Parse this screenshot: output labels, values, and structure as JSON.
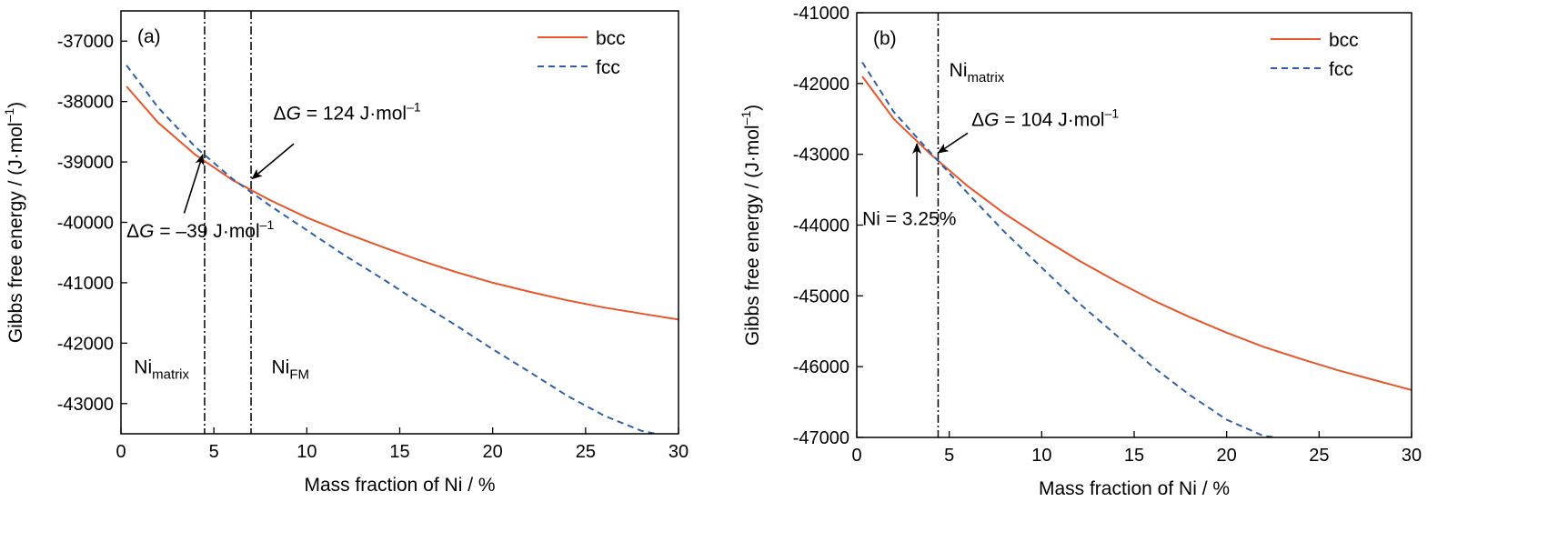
{
  "chart_data": [
    {
      "panel_label": "(a)",
      "type": "line",
      "xlabel": "Mass fraction of Ni / %",
      "ylabel_main": "Gibbs free energy / (J",
      "ylabel_dot": "·",
      "ylabel_unit": "mol",
      "ylabel_sup": "–1",
      "ylabel_close": ")",
      "xlim": [
        0,
        30
      ],
      "ylim": [
        -43500,
        -36500
      ],
      "xticks": [
        0,
        5,
        10,
        15,
        20,
        25,
        30
      ],
      "yticks": [
        -43000,
        -42000,
        -41000,
        -40000,
        -39000,
        -38000,
        -37000
      ],
      "legend_position": "top-right",
      "series": [
        {
          "name": "bcc",
          "color": "#e8552a",
          "style": "solid",
          "x": [
            0.3,
            2,
            4,
            6,
            8,
            10,
            12,
            14,
            16,
            18,
            20,
            22,
            24,
            26,
            28,
            30
          ],
          "y": [
            -37750,
            -38350,
            -38880,
            -39300,
            -39630,
            -39920,
            -40170,
            -40400,
            -40620,
            -40820,
            -41000,
            -41150,
            -41290,
            -41410,
            -41510,
            -41610
          ]
        },
        {
          "name": "fcc",
          "color": "#2f5fa6",
          "style": "dashed",
          "x": [
            0.3,
            2,
            4,
            6,
            8,
            10,
            12,
            14,
            16,
            18,
            20,
            22,
            24,
            26,
            28,
            28.8
          ],
          "y": [
            -37400,
            -38100,
            -38750,
            -39280,
            -39720,
            -40130,
            -40540,
            -40920,
            -41320,
            -41700,
            -42100,
            -42480,
            -42870,
            -43200,
            -43450,
            -43500
          ]
        }
      ],
      "vlines": [
        4.5,
        7.0
      ],
      "text_labels": [
        {
          "base": "Ni",
          "sub": "matrix",
          "x": 0.7,
          "y": -42500
        },
        {
          "base": "Ni",
          "sub": "FM",
          "x": 8.1,
          "y": -42500
        }
      ],
      "annotations": [
        {
          "prefix": "Δ",
          "var": "G",
          "text": " = –39 J",
          "dot": "·",
          "unit": "mol",
          "sup": "–1",
          "text_x": 0.3,
          "text_y": -40250,
          "arrow_from": [
            3.4,
            -39850
          ],
          "arrow_to": [
            4.4,
            -38880
          ]
        },
        {
          "prefix": "Δ",
          "var": "G",
          "text": " = 124 J",
          "dot": "·",
          "unit": "mol",
          "sup": "–1",
          "text_x": 8.2,
          "text_y": -38300,
          "arrow_from": [
            9.3,
            -38700
          ],
          "arrow_to": [
            7.05,
            -39280
          ]
        }
      ]
    },
    {
      "panel_label": "(b)",
      "type": "line",
      "xlabel": "Mass fraction of Ni / %",
      "ylabel_main": "Gibbs free energy / (J",
      "ylabel_dot": "·",
      "ylabel_unit": "mol",
      "ylabel_sup": "–1",
      "ylabel_close": ")",
      "xlim": [
        0,
        30
      ],
      "ylim": [
        -47000,
        -41000
      ],
      "xticks": [
        0,
        5,
        10,
        15,
        20,
        25,
        30
      ],
      "yticks": [
        -47000,
        -46000,
        -45000,
        -44000,
        -43000,
        -42000,
        -41000
      ],
      "legend_position": "top-right",
      "series": [
        {
          "name": "bcc",
          "color": "#e8552a",
          "style": "solid",
          "x": [
            0.3,
            2,
            4,
            6,
            8,
            10,
            12,
            14,
            16,
            18,
            20,
            22,
            24,
            26,
            28,
            30
          ],
          "y": [
            -41900,
            -42500,
            -43000,
            -43450,
            -43840,
            -44180,
            -44500,
            -44790,
            -45060,
            -45300,
            -45520,
            -45720,
            -45890,
            -46050,
            -46190,
            -46330
          ]
        },
        {
          "name": "fcc",
          "color": "#2f5fa6",
          "style": "dashed",
          "x": [
            0.3,
            2,
            4,
            6,
            8,
            10,
            12,
            14,
            16,
            18,
            20,
            22,
            22.7
          ],
          "y": [
            -41700,
            -42400,
            -42980,
            -43550,
            -44100,
            -44600,
            -45100,
            -45550,
            -46000,
            -46400,
            -46750,
            -46980,
            -47000
          ]
        }
      ],
      "vlines": [
        4.4
      ],
      "text_labels": [
        {
          "base": "Ni",
          "sub": "matrix",
          "x": 5.0,
          "y": -41900
        }
      ],
      "annotations": [
        {
          "prefix": "Δ",
          "var": "G",
          "text": " = 104 J",
          "dot": "·",
          "unit": "mol",
          "sup": "–1",
          "text_x": 6.2,
          "text_y": -42600,
          "arrow_from": [
            6.0,
            -42700
          ],
          "arrow_to": [
            4.4,
            -42980
          ]
        },
        {
          "prefix": "",
          "var": "",
          "text": "Ni = 3.25%",
          "dot": "",
          "unit": "",
          "sup": "",
          "text_x": 0.3,
          "text_y": -44000,
          "arrow_from": [
            3.25,
            -43600
          ],
          "arrow_to": [
            3.25,
            -42850
          ]
        }
      ]
    }
  ]
}
